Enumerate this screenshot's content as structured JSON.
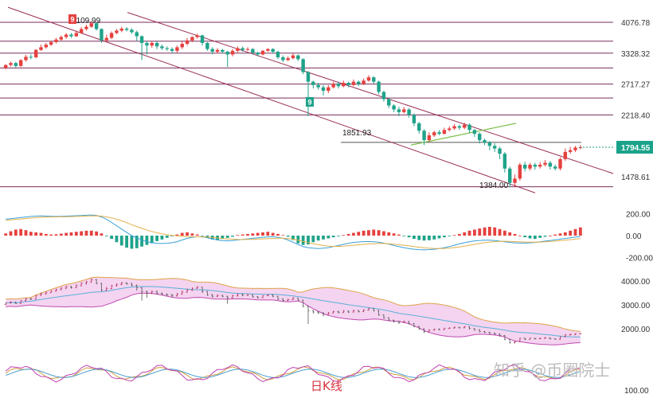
{
  "caption": "日K线",
  "watermark": "知乎 @币圈院士",
  "chart_data": {
    "type": "candlestick",
    "title": "",
    "colors": {
      "up": "#e5413f",
      "down": "#1fa38a",
      "level": "#7a2d5a",
      "channel": "#9a2f55",
      "trend_green": "#7cc04b",
      "current_price": "#1aa38a"
    },
    "price_axis": {
      "ticks": [
        4076.78,
        3328.32,
        2717.27,
        2218.4,
        1794.55,
        1478.61
      ],
      "current_price": 1794.55
    },
    "levels": [
      4076.78,
      3328.32,
      2717.27,
      2218.4,
      1851.93,
      1384.0,
      3600,
      3020,
      2480
    ],
    "annotations": [
      {
        "text": "4109.99",
        "kind": "high"
      },
      {
        "text": "1851.93",
        "kind": "level"
      },
      {
        "text": "1384.00",
        "kind": "low"
      }
    ],
    "flags": [
      "9",
      "9"
    ],
    "candles": [
      [
        3020,
        3080,
        2990,
        3090
      ],
      [
        3080,
        3120,
        3050,
        3150
      ],
      [
        3120,
        3060,
        3030,
        3140
      ],
      [
        3060,
        3180,
        3040,
        3200
      ],
      [
        3180,
        3250,
        3150,
        3290
      ],
      [
        3250,
        3240,
        3200,
        3300
      ],
      [
        3240,
        3400,
        3220,
        3420
      ],
      [
        3400,
        3460,
        3380,
        3520
      ],
      [
        3460,
        3520,
        3430,
        3560
      ],
      [
        3520,
        3580,
        3490,
        3610
      ],
      [
        3580,
        3640,
        3550,
        3680
      ],
      [
        3640,
        3700,
        3610,
        3740
      ],
      [
        3700,
        3760,
        3660,
        3800
      ],
      [
        3760,
        3720,
        3680,
        3800
      ],
      [
        3720,
        3800,
        3700,
        3860
      ],
      [
        3800,
        3900,
        3780,
        3950
      ],
      [
        3900,
        3960,
        3860,
        4010
      ],
      [
        3960,
        4050,
        3930,
        4110
      ],
      [
        4050,
        3900,
        3860,
        4080
      ],
      [
        3900,
        3620,
        3560,
        3920
      ],
      [
        3620,
        3680,
        3580,
        3760
      ],
      [
        3680,
        3800,
        3650,
        3840
      ],
      [
        3800,
        3860,
        3770,
        3900
      ],
      [
        3860,
        3910,
        3820,
        3960
      ],
      [
        3910,
        3880,
        3840,
        3950
      ],
      [
        3880,
        3820,
        3780,
        3920
      ],
      [
        3820,
        3720,
        3600,
        3860
      ],
      [
        3720,
        3560,
        3180,
        3740
      ],
      [
        3560,
        3500,
        3300,
        3600
      ],
      [
        3500,
        3560,
        3450,
        3600
      ],
      [
        3560,
        3480,
        3420,
        3600
      ],
      [
        3480,
        3440,
        3400,
        3520
      ],
      [
        3440,
        3420,
        3380,
        3480
      ],
      [
        3420,
        3380,
        3320,
        3460
      ],
      [
        3380,
        3460,
        3340,
        3500
      ],
      [
        3460,
        3540,
        3420,
        3600
      ],
      [
        3540,
        3620,
        3500,
        3680
      ],
      [
        3620,
        3700,
        3580,
        3720
      ],
      [
        3700,
        3740,
        3660,
        3780
      ],
      [
        3740,
        3560,
        3500,
        3760
      ],
      [
        3560,
        3420,
        3380,
        3580
      ],
      [
        3420,
        3360,
        3300,
        3460
      ],
      [
        3360,
        3400,
        3320,
        3440
      ],
      [
        3400,
        3360,
        3320,
        3420
      ],
      [
        3360,
        3300,
        3040,
        3380
      ],
      [
        3300,
        3380,
        3260,
        3420
      ],
      [
        3380,
        3440,
        3340,
        3480
      ],
      [
        3440,
        3400,
        3360,
        3480
      ],
      [
        3400,
        3420,
        3380,
        3460
      ],
      [
        3420,
        3340,
        3300,
        3440
      ],
      [
        3340,
        3300,
        3260,
        3360
      ],
      [
        3300,
        3380,
        3280,
        3400
      ],
      [
        3380,
        3420,
        3360,
        3440
      ],
      [
        3420,
        3360,
        3320,
        3440
      ],
      [
        3360,
        3240,
        3200,
        3380
      ],
      [
        3240,
        3180,
        3140,
        3280
      ],
      [
        3180,
        3220,
        3160,
        3260
      ],
      [
        3220,
        3280,
        3200,
        3320
      ],
      [
        3280,
        3200,
        3160,
        3300
      ],
      [
        3200,
        2940,
        2900,
        3220
      ],
      [
        2940,
        2760,
        2200,
        2960
      ],
      [
        2760,
        2700,
        2640,
        2780
      ],
      [
        2700,
        2660,
        2620,
        2740
      ],
      [
        2660,
        2600,
        2520,
        2700
      ],
      [
        2600,
        2660,
        2560,
        2700
      ],
      [
        2660,
        2720,
        2640,
        2760
      ],
      [
        2720,
        2680,
        2640,
        2760
      ],
      [
        2680,
        2740,
        2660,
        2780
      ],
      [
        2740,
        2700,
        2660,
        2760
      ],
      [
        2700,
        2760,
        2680,
        2800
      ],
      [
        2760,
        2720,
        2680,
        2780
      ],
      [
        2720,
        2780,
        2700,
        2820
      ],
      [
        2780,
        2840,
        2760,
        2880
      ],
      [
        2840,
        2760,
        2720,
        2860
      ],
      [
        2760,
        2580,
        2540,
        2780
      ],
      [
        2580,
        2460,
        2420,
        2600
      ],
      [
        2460,
        2360,
        2320,
        2480
      ],
      [
        2360,
        2300,
        2260,
        2380
      ],
      [
        2300,
        2260,
        2200,
        2340
      ],
      [
        2260,
        2300,
        2240,
        2340
      ],
      [
        2300,
        2220,
        2180,
        2320
      ],
      [
        2220,
        2100,
        2060,
        2240
      ],
      [
        2100,
        2000,
        1960,
        2120
      ],
      [
        2000,
        1880,
        1820,
        2020
      ],
      [
        1880,
        1940,
        1860,
        1980
      ],
      [
        1940,
        1980,
        1920,
        2000
      ],
      [
        1980,
        1960,
        1940,
        2010
      ],
      [
        1960,
        2010,
        1950,
        2040
      ],
      [
        2010,
        2030,
        1990,
        2060
      ],
      [
        2030,
        2060,
        2010,
        2090
      ],
      [
        2060,
        2040,
        2010,
        2080
      ],
      [
        2040,
        2080,
        2020,
        2110
      ],
      [
        2080,
        2010,
        1970,
        2100
      ],
      [
        2010,
        1960,
        1920,
        2020
      ],
      [
        1960,
        1880,
        1840,
        1980
      ],
      [
        1880,
        1850,
        1820,
        1900
      ],
      [
        1850,
        1810,
        1760,
        1870
      ],
      [
        1810,
        1780,
        1740,
        1840
      ],
      [
        1780,
        1720,
        1660,
        1800
      ],
      [
        1720,
        1560,
        1520,
        1740
      ],
      [
        1560,
        1420,
        1380,
        1580
      ],
      [
        1420,
        1460,
        1384,
        1500
      ],
      [
        1460,
        1600,
        1440,
        1620
      ],
      [
        1600,
        1560,
        1530,
        1630
      ],
      [
        1560,
        1600,
        1540,
        1620
      ],
      [
        1600,
        1580,
        1550,
        1620
      ],
      [
        1580,
        1600,
        1560,
        1630
      ],
      [
        1600,
        1620,
        1580,
        1650
      ],
      [
        1620,
        1580,
        1550,
        1640
      ],
      [
        1580,
        1560,
        1540,
        1600
      ],
      [
        1560,
        1660,
        1540,
        1680
      ],
      [
        1660,
        1740,
        1640,
        1780
      ],
      [
        1740,
        1760,
        1720,
        1800
      ],
      [
        1760,
        1790,
        1740,
        1810
      ],
      [
        1790,
        1794.55,
        1770,
        1820
      ]
    ],
    "macd": {
      "ticks": [
        200,
        0,
        -200
      ],
      "hist": [
        20,
        40,
        55,
        60,
        50,
        35,
        30,
        25,
        15,
        10,
        12,
        18,
        25,
        30,
        35,
        40,
        45,
        45,
        38,
        20,
        -5,
        -30,
        -60,
        -90,
        -110,
        -120,
        -115,
        -100,
        -85,
        -70,
        -50,
        -35,
        -20,
        -5,
        10,
        25,
        30,
        20,
        10,
        -5,
        -20,
        -35,
        -40,
        -30,
        -20,
        -10,
        5,
        10,
        15,
        20,
        25,
        30,
        35,
        25,
        15,
        5,
        -10,
        -40,
        -70,
        -85,
        -80,
        -60,
        -45,
        -35,
        -25,
        -15,
        -5,
        5,
        15,
        25,
        35,
        45,
        50,
        55,
        50,
        40,
        30,
        20,
        10,
        -5,
        -15,
        -30,
        -40,
        -45,
        -42,
        -35,
        -25,
        -15,
        -5,
        5,
        15,
        30,
        45,
        55,
        65,
        75,
        80,
        75,
        60,
        45,
        30,
        15,
        0,
        -15,
        -25,
        -30,
        -20,
        -10,
        0,
        10,
        20,
        30,
        45,
        60,
        75,
        85,
        90
      ],
      "dif": [
        150,
        155,
        160,
        165,
        170,
        175,
        178,
        180,
        178,
        176,
        175,
        176,
        178,
        180,
        182,
        184,
        186,
        188,
        185,
        170,
        150,
        120,
        90,
        60,
        30,
        0,
        -20,
        -40,
        -55,
        -65,
        -70,
        -72,
        -70,
        -65,
        -55,
        -40,
        -25,
        -15,
        -10,
        -12,
        -20,
        -30,
        -40,
        -45,
        -48,
        -45,
        -40,
        -35,
        -30,
        -25,
        -20,
        -15,
        -12,
        -10,
        -15,
        -25,
        -40,
        -60,
        -80,
        -100,
        -110,
        -115,
        -118,
        -115,
        -110,
        -100,
        -90,
        -80,
        -70,
        -62,
        -58,
        -55,
        -54,
        -56,
        -60,
        -68,
        -78,
        -90,
        -100,
        -110,
        -118,
        -124,
        -128,
        -130,
        -128,
        -124,
        -118,
        -110,
        -100,
        -88,
        -76,
        -65,
        -55,
        -48,
        -44,
        -42,
        -42,
        -45,
        -50,
        -56,
        -62,
        -66,
        -68,
        -68,
        -66,
        -62,
        -56,
        -50,
        -44,
        -38,
        -32,
        -26,
        -20,
        -14,
        -8,
        -2
      ],
      "dea": [
        140,
        144,
        148,
        152,
        156,
        160,
        164,
        167,
        169,
        170,
        171,
        172,
        173,
        174,
        176,
        177,
        179,
        180,
        181,
        178,
        172,
        162,
        150,
        135,
        118,
        100,
        83,
        66,
        51,
        38,
        26,
        16,
        8,
        2,
        -2,
        -5,
        -8,
        -10,
        -11,
        -12,
        -14,
        -17,
        -21,
        -26,
        -30,
        -33,
        -35,
        -36,
        -35,
        -34,
        -32,
        -30,
        -28,
        -26,
        -24,
        -24,
        -27,
        -33,
        -42,
        -53,
        -64,
        -74,
        -83,
        -90,
        -95,
        -98,
        -98,
        -96,
        -92,
        -88,
        -84,
        -80,
        -76,
        -74,
        -72,
        -72,
        -74,
        -78,
        -82,
        -88,
        -94,
        -100,
        -106,
        -111,
        -115,
        -117,
        -118,
        -117,
        -114,
        -109,
        -103,
        -96,
        -88,
        -80,
        -72,
        -65,
        -59,
        -55,
        -53,
        -52,
        -53,
        -55,
        -57,
        -59,
        -60,
        -60,
        -59,
        -57,
        -54,
        -50,
        -46,
        -42,
        -37,
        -32,
        -27,
        -22
      ]
    },
    "boll": {
      "ticks": [
        4000,
        3000,
        2000
      ]
    },
    "osc": {
      "ticks": [
        100
      ]
    }
  }
}
